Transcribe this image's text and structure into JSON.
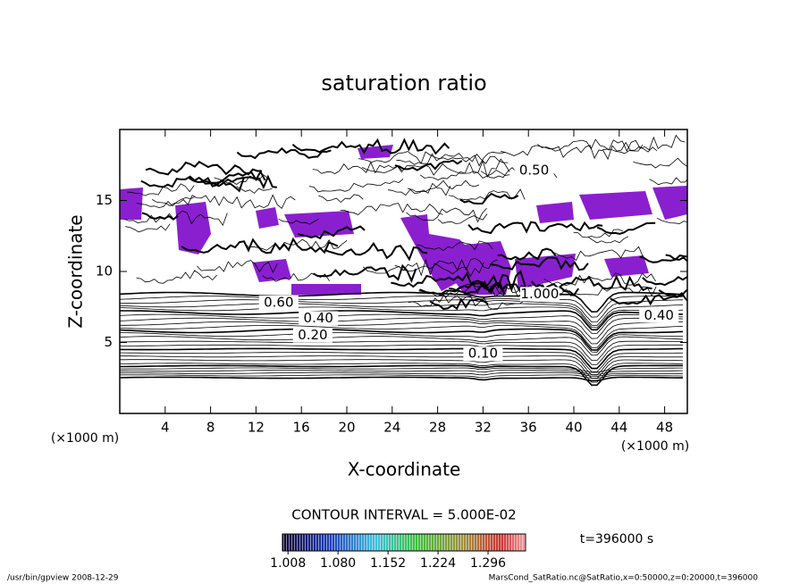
{
  "chart_data": {
    "type": "contour",
    "title": "saturation ratio",
    "xlabel": "X-coordinate",
    "ylabel": "Z-coordinate",
    "x_unit": "(×1000 m)",
    "y_unit": "(×1000 m)",
    "xlim": [
      0,
      50
    ],
    "xticks": [
      4,
      8,
      12,
      16,
      20,
      24,
      28,
      32,
      36,
      40,
      44,
      48
    ],
    "ylim": [
      0,
      20
    ],
    "yticks": [
      5,
      10,
      15
    ],
    "shade_color": "#8a1fd0",
    "contour_labels": [
      {
        "label": "0.10",
        "value": 0.1,
        "x": 32,
        "z": 4.2
      },
      {
        "label": "0.20",
        "value": 0.2,
        "x": 17,
        "z": 5.5
      },
      {
        "label": "0.40",
        "value": 0.4,
        "x": 17.5,
        "z": 6.7
      },
      {
        "label": "0.60",
        "value": 0.6,
        "x": 14,
        "z": 7.8
      },
      {
        "label": "0.50",
        "value": 0.5,
        "x": 36.5,
        "z": 17.1
      },
      {
        "label": "1.000",
        "value": 1,
        "x": 37,
        "z": 8.4
      },
      {
        "label": "0.40",
        "value": 0.4,
        "x": 47.5,
        "z": 6.9
      }
    ],
    "contour_interval": "CONTOUR INTERVAL = 5.000E-02",
    "time_label": "t=396000 s",
    "colorbar_lim": [
      1.0,
      1.35
    ],
    "colorbar_ticks": [
      1.008,
      {
        "value": 1.08,
        "label": "1.080"
      },
      1.152,
      1.224,
      1.296
    ],
    "footer_left": "/usr/bin/gpview  2008-12-29",
    "footer_right": "MarsCond_SatRatio.nc@SatRatio,x=0:50000,z=0:20000,t=396000"
  }
}
